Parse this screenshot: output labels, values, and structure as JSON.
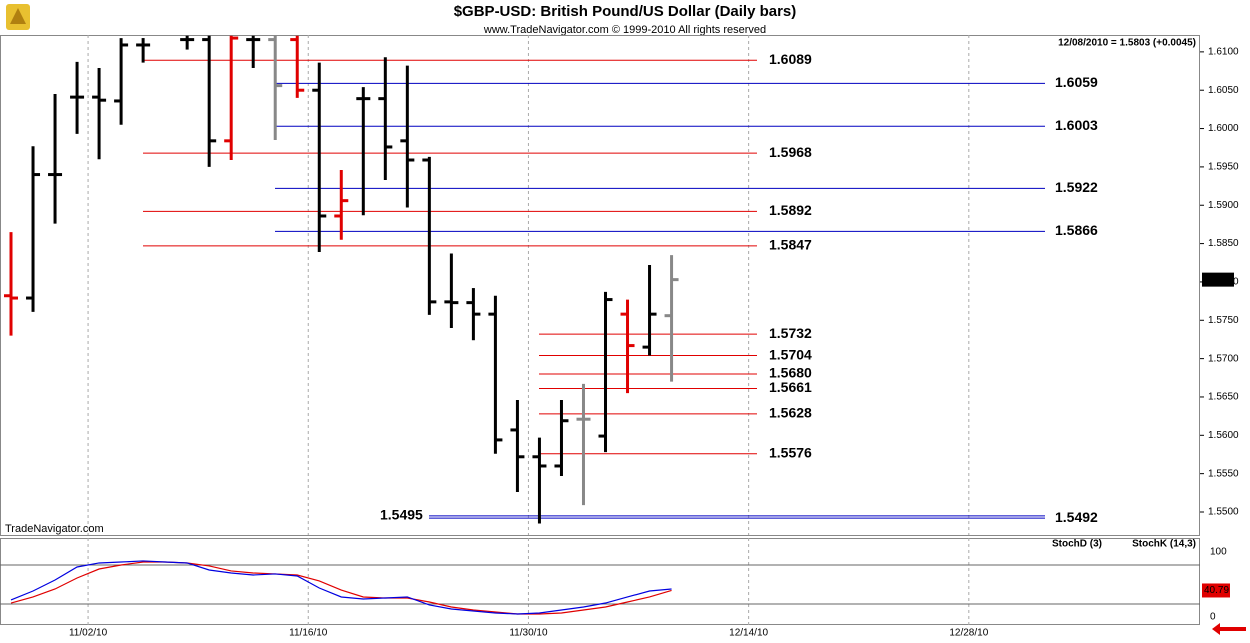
{
  "chart_data": [
    {
      "type": "ohlc",
      "title": "$GBP-USD:  British Pound/US Dollar  (Daily bars)",
      "subtitle": "www.TradeNavigator.com © 1999-2010 All rights reserved",
      "quote": "12/08/2010 = 1.5803 (+0.0045)",
      "watermark": "TradeNavigator.com",
      "x": [
        0,
        1,
        2,
        3,
        4,
        5,
        6,
        8,
        9,
        10,
        11,
        12,
        13,
        14,
        15,
        16,
        17,
        18,
        19,
        20,
        21,
        22,
        23,
        24,
        25,
        26,
        27,
        28,
        29,
        30
      ],
      "open": [
        1.5782,
        1.5779,
        1.594,
        1.6041,
        1.6041,
        1.6036,
        1.6109,
        1.6116,
        1.6116,
        1.5984,
        1.6116,
        1.6116,
        1.6116,
        1.605,
        1.5886,
        1.6039,
        1.6039,
        1.5984,
        1.5959,
        1.5774,
        1.5773,
        1.5758,
        1.5607,
        1.5572,
        1.556,
        1.5621,
        1.5599,
        1.5758,
        1.5715,
        1.5756
      ],
      "high": [
        1.5865,
        1.5977,
        1.6045,
        1.6087,
        1.6079,
        1.6118,
        1.6118,
        1.6121,
        1.6121,
        1.6121,
        1.6121,
        1.6121,
        1.6121,
        1.6086,
        1.5946,
        1.6054,
        1.6093,
        1.6082,
        1.5963,
        1.5837,
        1.5792,
        1.5782,
        1.5646,
        1.5597,
        1.5646,
        1.5667,
        1.5787,
        1.5777,
        1.5822,
        1.5835
      ],
      "low": [
        1.573,
        1.5761,
        1.5876,
        1.5993,
        1.596,
        1.6005,
        1.6086,
        1.6103,
        1.595,
        1.5959,
        1.6079,
        1.5985,
        1.604,
        1.5839,
        1.5855,
        1.5887,
        1.5933,
        1.5897,
        1.5757,
        1.574,
        1.5724,
        1.5576,
        1.5526,
        1.5485,
        1.5547,
        1.5509,
        1.5578,
        1.5655,
        1.5704,
        1.567
      ],
      "close": [
        1.5779,
        1.594,
        1.594,
        1.6041,
        1.6037,
        1.6109,
        1.6109,
        1.6116,
        1.5984,
        1.6118,
        1.6116,
        1.6056,
        1.605,
        1.5886,
        1.5906,
        1.6039,
        1.5976,
        1.5959,
        1.5774,
        1.5773,
        1.5758,
        1.5594,
        1.5572,
        1.556,
        1.5619,
        1.5621,
        1.5777,
        1.5717,
        1.5758,
        1.5803
      ],
      "bar_colors": [
        "#e00000",
        "#000000",
        "#000000",
        "#000000",
        "#000000",
        "#000000",
        "#000000",
        "#000000",
        "#000000",
        "#e00000",
        "#000000",
        "#888888",
        "#e00000",
        "#000000",
        "#e00000",
        "#000000",
        "#000000",
        "#000000",
        "#000000",
        "#000000",
        "#000000",
        "#000000",
        "#000000",
        "#000000",
        "#000000",
        "#888888",
        "#000000",
        "#e00000",
        "#000000",
        "#888888"
      ],
      "levels": [
        {
          "color": "#e00000",
          "values": [
            1.6089,
            1.5968,
            1.5892,
            1.5847
          ],
          "value_labels": [
            "1.6089",
            "1.5968",
            "1.5892",
            "1.5847"
          ]
        },
        {
          "color": "#e00000",
          "values": [
            1.5732,
            1.5704,
            1.568,
            1.5661,
            1.5628,
            1.5576
          ],
          "value_labels": [
            "1.5732",
            "1.5704",
            "1.5680",
            "1.5661",
            "1.5628",
            "1.5576"
          ]
        },
        {
          "color": "#0000c0",
          "values": [
            1.6059,
            1.6003,
            1.5922,
            1.5866
          ],
          "value_labels": [
            "1.6059",
            "1.6003",
            "1.5922",
            "1.5866"
          ]
        },
        {
          "color": "#0000c0",
          "values": [
            1.5495,
            1.5492
          ],
          "value_labels": [
            "1.5495",
            "1.5492"
          ]
        }
      ],
      "xlim": [
        -0.5,
        54
      ],
      "xticks": [
        {
          "value": 3.5,
          "label": "11/02/10"
        },
        {
          "value": 13.5,
          "label": "11/16/10"
        },
        {
          "value": 23.5,
          "label": "11/30/10"
        },
        {
          "value": 33.5,
          "label": "12/14/10"
        },
        {
          "value": 43.5,
          "label": "12/28/10"
        }
      ],
      "ylim": [
        1.547,
        1.6122
      ],
      "yticks": [
        {
          "value": 1.55,
          "label": "1.5500"
        },
        {
          "value": 1.555,
          "label": "1.5550"
        },
        {
          "value": 1.56,
          "label": "1.5600"
        },
        {
          "value": 1.565,
          "label": "1.5650"
        },
        {
          "value": 1.57,
          "label": "1.5700"
        },
        {
          "value": 1.575,
          "label": "1.5750"
        },
        {
          "value": 1.58,
          "label": "1.5800"
        },
        {
          "value": 1.585,
          "label": "1.5850"
        },
        {
          "value": 1.59,
          "label": "1.5900"
        },
        {
          "value": 1.595,
          "label": "1.5950"
        },
        {
          "value": 1.6,
          "label": "1.6000"
        },
        {
          "value": 1.605,
          "label": "1.6050"
        },
        {
          "value": 1.61,
          "label": "1.6100"
        }
      ],
      "grid": true
    },
    {
      "type": "line",
      "x": [
        0,
        1,
        2,
        3,
        4,
        5,
        6,
        7,
        8,
        9,
        10,
        11,
        12,
        13,
        14,
        15,
        16,
        17,
        18,
        19,
        20,
        21,
        22,
        23,
        24,
        25,
        26,
        27,
        28,
        29,
        30
      ],
      "series": [
        {
          "name": "StochD (3)",
          "color": "#e00000",
          "values": [
            21.5,
            30.8,
            43.1,
            60,
            73.8,
            80,
            84.6,
            84.6,
            83.1,
            78.5,
            70.8,
            67.7,
            66.2,
            64.6,
            55.4,
            41.5,
            30.8,
            29.2,
            29.2,
            23.1,
            15.4,
            10.8,
            7.7,
            4.6,
            4.6,
            6.2,
            10.8,
            15.4,
            23.1,
            30.8,
            40.79
          ]
        },
        {
          "name": "StochK (14,3)",
          "color": "#0000e0",
          "values": [
            26.2,
            40,
            56.9,
            76.9,
            83.1,
            84.6,
            86.2,
            84.6,
            83.1,
            72.3,
            67.7,
            64.6,
            66.2,
            63.1,
            44.6,
            30.8,
            27.7,
            29.2,
            30.8,
            18.5,
            12.3,
            9.2,
            6.2,
            4.6,
            6.2,
            10.8,
            15.4,
            21.5,
            30.8,
            40,
            43.1
          ]
        }
      ],
      "bands": [
        20,
        80
      ],
      "ylim": [
        -12.3,
        121.5
      ],
      "yticks": [
        0,
        100
      ]
    }
  ]
}
